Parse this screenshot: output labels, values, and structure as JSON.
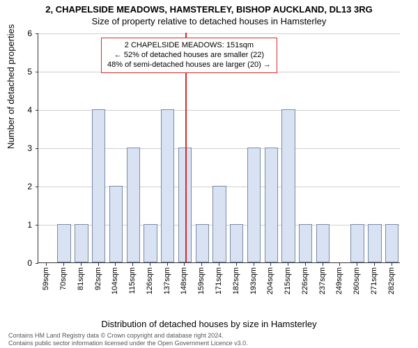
{
  "titles": {
    "line1": "2, CHAPELSIDE MEADOWS, HAMSTERLEY, BISHOP AUCKLAND, DL13 3RG",
    "line2": "Size of property relative to detached houses in Hamsterley"
  },
  "chart": {
    "type": "bar",
    "categories": [
      "59sqm",
      "70sqm",
      "81sqm",
      "92sqm",
      "104sqm",
      "115sqm",
      "126sqm",
      "137sqm",
      "148sqm",
      "159sqm",
      "171sqm",
      "182sqm",
      "193sqm",
      "204sqm",
      "215sqm",
      "226sqm",
      "237sqm",
      "249sqm",
      "260sqm",
      "271sqm",
      "282sqm"
    ],
    "values": [
      0,
      1,
      1,
      4,
      2,
      3,
      1,
      4,
      3,
      1,
      2,
      1,
      3,
      3,
      4,
      1,
      1,
      0,
      1,
      1,
      1
    ],
    "bar_color": "#d8e2f2",
    "bar_border_color": "#7a8aa8",
    "bar_width": 0.78,
    "ylim": [
      0,
      6
    ],
    "ytick_step": 1,
    "grid_color": "#cfcfcf",
    "background_color": "#ffffff",
    "ylabel": "Number of detached properties",
    "xlabel": "Distribution of detached houses by size in Hamsterley",
    "label_fontsize": 13,
    "tick_fontsize": 11,
    "marker": {
      "category_index": 8,
      "fraction_within_bar": 0.55,
      "color": "#d92a2a"
    },
    "annotation": {
      "line1": "2 CHAPELSIDE MEADOWS: 151sqm",
      "line2": "← 52% of detached houses are smaller (22)",
      "line3": "48% of semi-detached houses are larger (20) →",
      "border_color": "#d92a2a",
      "text_color": "#000000",
      "fontsize": 11
    }
  },
  "footer": {
    "line1": "Contains HM Land Registry data © Crown copyright and database right 2024.",
    "line2": "Contains public sector information licensed under the Open Government Licence v3.0."
  }
}
